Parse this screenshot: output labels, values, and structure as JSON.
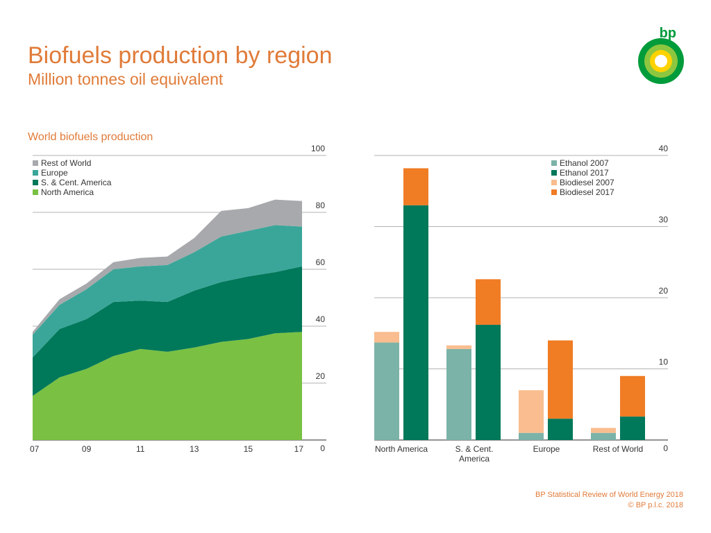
{
  "header": {
    "title": "Biofuels production by region",
    "subtitle": "Million tonnes oil equivalent",
    "section_title": "World biofuels production"
  },
  "logo": {
    "text": "bp"
  },
  "footer": {
    "source": "BP Statistical Review of World Energy 2018",
    "copyright": "© BP p.l.c. 2018"
  },
  "colors": {
    "north_america": "#7ac143",
    "s_cent_america": "#00785a",
    "europe": "#3aa699",
    "rest_of_world": "#a7a9ac",
    "ethanol_2007": "#7bb3a8",
    "ethanol_2017": "#00785a",
    "biodiesel_2007": "#f9bd8f",
    "biodiesel_2017": "#f07c24",
    "accent": "#e07b39"
  },
  "chart_data": [
    {
      "type": "area",
      "stacked": true,
      "x": [
        2007,
        2008,
        2009,
        2010,
        2011,
        2012,
        2013,
        2014,
        2015,
        2016,
        2017
      ],
      "xticks": [
        "07",
        "09",
        "11",
        "13",
        "15",
        "17"
      ],
      "series": [
        {
          "name": "North America",
          "values": [
            15.5,
            22,
            25,
            29.5,
            32,
            31,
            32.5,
            34.5,
            35.5,
            37.5,
            38
          ]
        },
        {
          "name": "S. & Cent. America",
          "values": [
            13.5,
            17,
            17.5,
            19,
            17,
            17.5,
            20,
            21,
            22,
            21.5,
            23
          ]
        },
        {
          "name": "Europe",
          "values": [
            8,
            8.5,
            10.5,
            11.5,
            12,
            13,
            13.5,
            16,
            16,
            16.5,
            14
          ]
        },
        {
          "name": "Rest of World",
          "values": [
            1,
            2,
            2,
            2.5,
            3,
            3,
            5,
            9,
            8,
            9,
            9
          ]
        }
      ],
      "legend": [
        "Rest of World",
        "Europe",
        "S. & Cent. America",
        "North America"
      ],
      "ylim": [
        0,
        100
      ],
      "yticks": [
        0,
        20,
        40,
        60,
        80,
        100
      ],
      "ytick_labels": [
        "0",
        "20",
        "40",
        "60",
        "80",
        "100"
      ],
      "grid": true
    },
    {
      "type": "bar",
      "stacked_pairs": true,
      "categories": [
        "North America",
        "S. & Cent. America",
        "Europe",
        "Rest of World"
      ],
      "category_labels": [
        [
          "North America"
        ],
        [
          "S. & Cent.",
          "America"
        ],
        [
          "Europe"
        ],
        [
          "Rest of World"
        ]
      ],
      "series": [
        {
          "name": "Ethanol 2007",
          "values": [
            13.7,
            12.8,
            1.0,
            1.0
          ]
        },
        {
          "name": "Biodiesel 2007",
          "values": [
            1.5,
            0.5,
            6.0,
            0.7
          ]
        },
        {
          "name": "Ethanol 2017",
          "values": [
            33.0,
            16.2,
            3.0,
            3.3
          ]
        },
        {
          "name": "Biodiesel 2017",
          "values": [
            5.2,
            6.4,
            11.0,
            5.7
          ]
        }
      ],
      "legend": [
        "Ethanol 2007",
        "Ethanol 2017",
        "Biodiesel 2007",
        "Biodiesel 2017"
      ],
      "ylim": [
        0,
        40
      ],
      "yticks": [
        0,
        10,
        20,
        30,
        40
      ],
      "ytick_labels": [
        "0",
        "10",
        "20",
        "30",
        "40"
      ],
      "grid": true
    }
  ]
}
